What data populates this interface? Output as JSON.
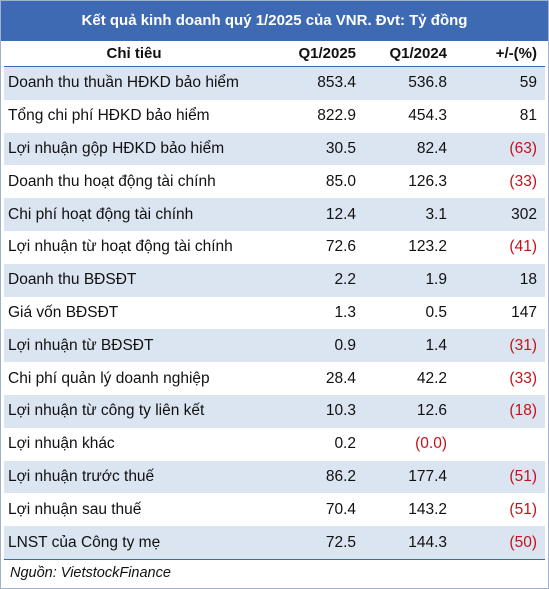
{
  "title": "Kết quả kinh doanh quý 1/2025 của VNR. Đvt: Tỷ đồng",
  "headers": [
    "Chỉ tiêu",
    "Q1/2025",
    "Q1/2024",
    "+/-(%)"
  ],
  "rows": [
    {
      "label": "Doanh thu thuần HĐKD bảo hiểm",
      "q1_2025": "853.4",
      "q1_2024": "536.8",
      "change": "59",
      "change_negative": false
    },
    {
      "label": "Tổng chi phí HĐKD bảo hiểm",
      "q1_2025": "822.9",
      "q1_2024": "454.3",
      "change": "81",
      "change_negative": false
    },
    {
      "label": "Lợi nhuận gộp HĐKD bảo hiểm",
      "q1_2025": "30.5",
      "q1_2024": "82.4",
      "change": "(63)",
      "change_negative": true
    },
    {
      "label": "Doanh thu hoạt động tài chính",
      "q1_2025": "85.0",
      "q1_2024": "126.3",
      "change": "(33)",
      "change_negative": true
    },
    {
      "label": "Chi phí hoạt động tài chính",
      "q1_2025": "12.4",
      "q1_2024": "3.1",
      "change": "302",
      "change_negative": false
    },
    {
      "label": "Lợi nhuận từ hoạt động tài chính",
      "q1_2025": "72.6",
      "q1_2024": "123.2",
      "change": "(41)",
      "change_negative": true
    },
    {
      "label": "Doanh thu BĐSĐT",
      "q1_2025": "2.2",
      "q1_2024": "1.9",
      "change": "18",
      "change_negative": false
    },
    {
      "label": "Giá vốn BĐSĐT",
      "q1_2025": "1.3",
      "q1_2024": "0.5",
      "change": "147",
      "change_negative": false
    },
    {
      "label": "Lợi nhuận từ BĐSĐT",
      "q1_2025": "0.9",
      "q1_2024": "1.4",
      "change": "(31)",
      "change_negative": true
    },
    {
      "label": "Chi phí quản lý doanh nghiệp",
      "q1_2025": "28.4",
      "q1_2024": "42.2",
      "change": "(33)",
      "change_negative": true
    },
    {
      "label": "Lợi nhuận từ công ty liên kết",
      "q1_2025": "10.3",
      "q1_2024": "12.6",
      "change": "(18)",
      "change_negative": true
    },
    {
      "label": "Lợi nhuận khác",
      "q1_2025": "0.2",
      "q1_2024": "(0.0)",
      "q1_2024_negative": true,
      "change": "",
      "change_negative": false
    },
    {
      "label": "Lợi nhuận trước thuế",
      "q1_2025": "86.2",
      "q1_2024": "177.4",
      "change": "(51)",
      "change_negative": true
    },
    {
      "label": "Lợi nhuận sau thuế",
      "q1_2025": "70.4",
      "q1_2024": "143.2",
      "change": "(51)",
      "change_negative": true
    },
    {
      "label": "LNST của Công ty mẹ",
      "q1_2025": "72.5",
      "q1_2024": "144.3",
      "change": "(50)",
      "change_negative": true
    }
  ],
  "source": "Nguồn: VietstockFinance",
  "colors": {
    "header_bg": "#3e6ab3",
    "band": "#dbe4f1",
    "negative": "#c0141c"
  }
}
